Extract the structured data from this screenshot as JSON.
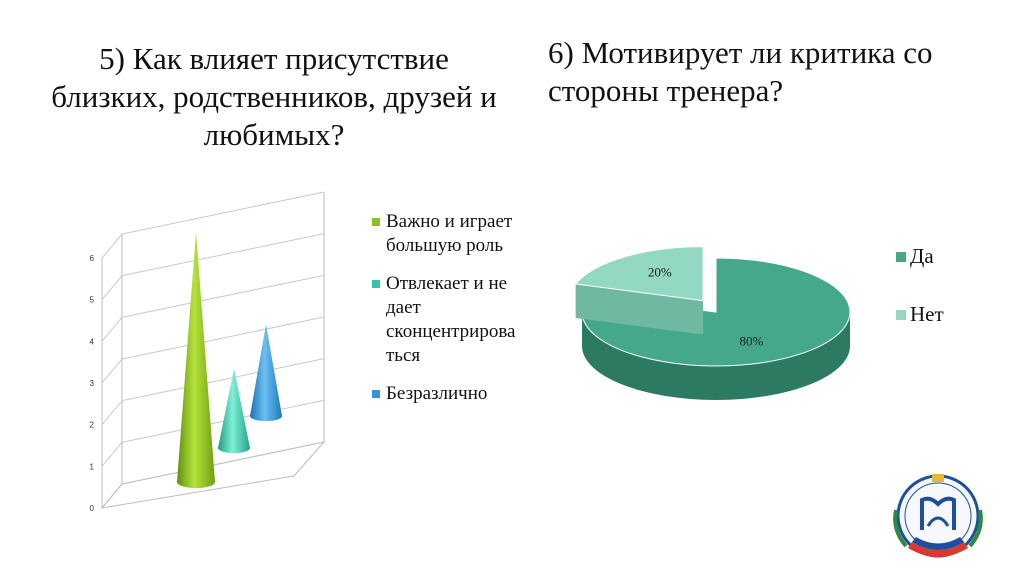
{
  "q5": {
    "title": "5) Как влияет присутствие близких, родственников, друзей и любимых?"
  },
  "q6": {
    "title": "6) Мотивирует ли критика со стороны тренера?"
  },
  "chart_data": [
    {
      "type": "bar",
      "style": "3d-cone",
      "categories": [
        "Важно и играет большую роль",
        "Отвлекает и не дает сконцентрироваться",
        "Безразлично"
      ],
      "values": [
        6,
        1.9,
        2.2
      ],
      "ylim": [
        0,
        6
      ],
      "yticks": [
        "0",
        "1",
        "2",
        "3",
        "4",
        "5",
        "6"
      ],
      "grid": true,
      "legend": {
        "position": "right",
        "items": [
          {
            "label": "Важно и играет большую роль",
            "color": "#8cc21b"
          },
          {
            "label": "Отвлекает и не дает сконцентрирова ться",
            "color": "#37c4a6"
          },
          {
            "label": "Безразлично",
            "color": "#2f96d8"
          }
        ]
      }
    },
    {
      "type": "pie",
      "style": "3d",
      "categories": [
        "Да",
        "Нет"
      ],
      "values": [
        80,
        20
      ],
      "data_labels": [
        "80%",
        "20%"
      ],
      "exploded": "Нет",
      "legend": {
        "position": "right",
        "items": [
          {
            "label": "Да",
            "color": "#45a88b"
          },
          {
            "label": "Нет",
            "color": "#93d8c2"
          }
        ]
      }
    }
  ],
  "emblem": {
    "icon": "academy-emblem-icon",
    "colors": [
      "#1d4f9e",
      "#d83a2f",
      "#2f8a3c",
      "#e4b83a"
    ]
  }
}
